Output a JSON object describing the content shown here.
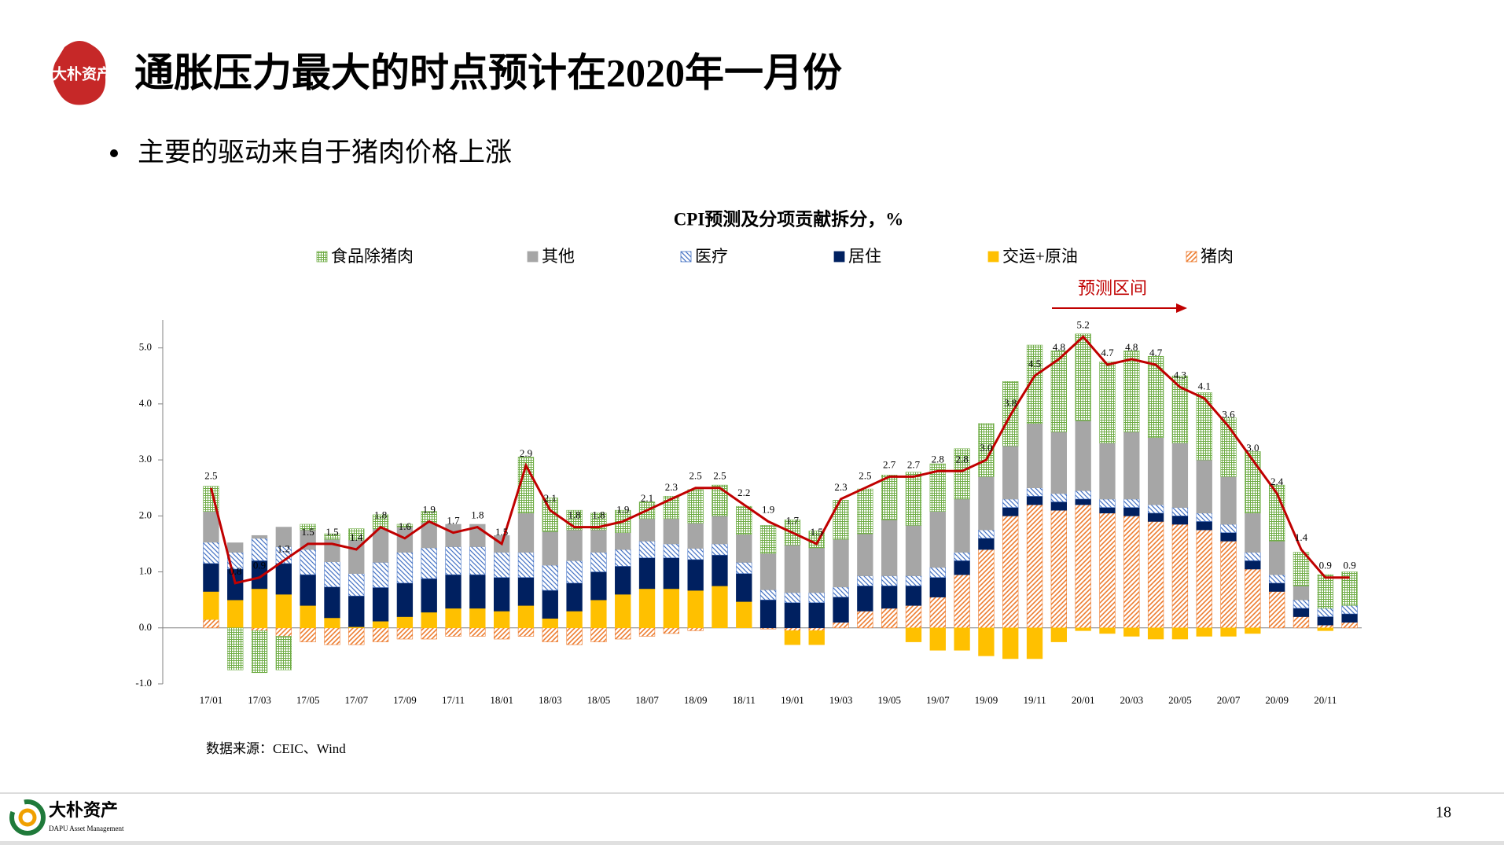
{
  "header": {
    "logo": "大朴资产",
    "title": "通胀压力最大的时点预计在2020年一月份",
    "bullet": "主要的驱动来自于猪肉价格上涨"
  },
  "chart_data": {
    "type": "stacked_bar_line",
    "title": "CPI预测及分项贡献拆分，%",
    "categories": [
      "17/01",
      null,
      "17/03",
      null,
      "17/05",
      null,
      "17/07",
      null,
      "17/09",
      null,
      "17/11",
      null,
      "18/01",
      null,
      "18/03",
      null,
      "18/05",
      null,
      "18/07",
      null,
      "18/09",
      null,
      "18/11",
      null,
      "19/01",
      null,
      "19/03",
      null,
      "19/05",
      null,
      "19/07",
      null,
      "19/09",
      null,
      "19/11",
      null,
      "20/01",
      null,
      "20/03",
      null,
      "20/05",
      null,
      "20/07",
      null,
      "20/09",
      null,
      "20/11",
      null
    ],
    "series": [
      {
        "name": "食品除猪肉",
        "color": "#70ad47",
        "hatch": "grid",
        "values": [
          0.45,
          -0.75,
          -0.75,
          -0.6,
          0.1,
          0.1,
          0.2,
          0.25,
          0.05,
          0.2,
          0,
          0,
          0,
          1.0,
          0.6,
          0.35,
          0.3,
          0.4,
          0.3,
          0.4,
          0.6,
          0.55,
          0.5,
          0.5,
          0.45,
          0.3,
          0.7,
          0.8,
          0.8,
          0.95,
          0.85,
          0.9,
          0.95,
          1.15,
          1.4,
          1.45,
          1.55,
          1.45,
          1.45,
          1.45,
          1.2,
          1.2,
          1.05,
          1.1,
          1.0,
          0.6,
          0.6,
          0.6
        ]
      },
      {
        "name": "其他",
        "color": "#a6a6a6",
        "hatch": "solid",
        "values": [
          0.55,
          0.17,
          0.05,
          0.35,
          0.35,
          0.4,
          0.6,
          0.6,
          0.45,
          0.45,
          0.4,
          0.4,
          0.3,
          0.7,
          0.6,
          0.55,
          0.4,
          0.3,
          0.4,
          0.45,
          0.45,
          0.5,
          0.5,
          0.65,
          0.85,
          0.8,
          0.85,
          0.75,
          1.0,
          0.9,
          1.0,
          0.95,
          0.95,
          0.95,
          1.15,
          1.1,
          1.25,
          1.0,
          1.2,
          1.2,
          1.15,
          0.95,
          0.85,
          0.7,
          0.6,
          0.25,
          0,
          0
        ]
      },
      {
        "name": "医疗",
        "color": "#4472c4",
        "hatch": "backdiagonal",
        "values": [
          0.38,
          0.3,
          0.4,
          0.3,
          0.45,
          0.45,
          0.4,
          0.45,
          0.55,
          0.55,
          0.5,
          0.5,
          0.45,
          0.45,
          0.45,
          0.4,
          0.35,
          0.3,
          0.3,
          0.25,
          0.2,
          0.2,
          0.2,
          0.18,
          0.18,
          0.18,
          0.18,
          0.18,
          0.18,
          0.18,
          0.18,
          0.15,
          0.15,
          0.15,
          0.15,
          0.15,
          0.15,
          0.15,
          0.15,
          0.15,
          0.15,
          0.15,
          0.15,
          0.15,
          0.15,
          0.15,
          0.15,
          0.15
        ]
      },
      {
        "name": "居住",
        "color": "#002060",
        "hatch": "solid",
        "values": [
          0.5,
          0.55,
          0.5,
          0.55,
          0.55,
          0.55,
          0.55,
          0.6,
          0.6,
          0.6,
          0.6,
          0.6,
          0.6,
          0.5,
          0.5,
          0.5,
          0.5,
          0.5,
          0.55,
          0.55,
          0.55,
          0.55,
          0.5,
          0.5,
          0.45,
          0.45,
          0.45,
          0.45,
          0.4,
          0.35,
          0.35,
          0.25,
          0.2,
          0.15,
          0.15,
          0.15,
          0.1,
          0.1,
          0.15,
          0.15,
          0.15,
          0.15,
          0.15,
          0.15,
          0.15,
          0.15,
          0.15,
          0.15
        ]
      },
      {
        "name": "交运+原油",
        "color": "#ffc000",
        "hatch": "solid",
        "values": [
          0.5,
          0.5,
          0.7,
          0.6,
          0.4,
          0.18,
          0.02,
          0.12,
          0.2,
          0.28,
          0.35,
          0.35,
          0.3,
          0.4,
          0.17,
          0.3,
          0.5,
          0.6,
          0.7,
          0.7,
          0.67,
          0.75,
          0.47,
          0,
          -0.25,
          -0.25,
          0,
          0,
          0,
          -0.25,
          -0.4,
          -0.4,
          -0.5,
          -0.55,
          -0.55,
          -0.25,
          -0.05,
          -0.1,
          -0.15,
          -0.2,
          -0.2,
          -0.15,
          -0.15,
          -0.1,
          0,
          0,
          -0.05,
          0
        ]
      },
      {
        "name": "猪肉",
        "color": "#ed7d31",
        "hatch": "diagonal",
        "values": [
          0.15,
          0,
          -0.05,
          -0.15,
          -0.25,
          -0.3,
          -0.3,
          -0.25,
          -0.2,
          -0.2,
          -0.15,
          -0.15,
          -0.2,
          -0.15,
          -0.25,
          -0.3,
          -0.25,
          -0.2,
          -0.15,
          -0.1,
          -0.05,
          0,
          0,
          -0.02,
          -0.05,
          -0.05,
          0.1,
          0.3,
          0.35,
          0.4,
          0.55,
          0.95,
          1.4,
          2.0,
          2.2,
          2.1,
          2.2,
          2.05,
          2.0,
          1.9,
          1.85,
          1.75,
          1.55,
          1.05,
          0.65,
          0.2,
          0.05,
          0.1
        ]
      }
    ],
    "line": {
      "color": "#c00000",
      "values": [
        2.5,
        0.8,
        0.9,
        1.2,
        1.5,
        1.5,
        1.4,
        1.8,
        1.6,
        1.9,
        1.7,
        1.8,
        1.5,
        2.9,
        2.1,
        1.8,
        1.8,
        1.9,
        2.1,
        2.3,
        2.5,
        2.5,
        2.2,
        1.9,
        1.7,
        1.5,
        2.3,
        2.5,
        2.7,
        2.7,
        2.8,
        2.8,
        3.0,
        3.8,
        4.5,
        4.8,
        5.2,
        4.7,
        4.8,
        4.7,
        4.3,
        4.1,
        3.6,
        3.0,
        2.4,
        1.4,
        0.9,
        0.9
      ],
      "value_labels": [
        "2.5",
        "0.8",
        "0.9",
        "1.2",
        "1.5",
        "1.5",
        "1.4",
        "1.8",
        "1.6",
        "1.9",
        "1.7",
        "1.8",
        "1.5",
        "2.9",
        "2.1",
        "1.8",
        "1.8",
        "1.9",
        "2.1",
        "2.3",
        "2.5",
        "2.5",
        "2.2",
        "1.9",
        "1.7",
        "1.5",
        "2.3",
        "2.5",
        "2.7",
        "2.7",
        "2.8",
        "2.8",
        "3.0",
        "3.8",
        "4.5",
        "4.8",
        "5.2",
        "4.7",
        "4.8",
        "4.7",
        "4.3",
        "4.1",
        "3.6",
        "3.0",
        "2.4",
        "1.4",
        "0.9",
        "0.9"
      ]
    },
    "annotation": "预测区间",
    "ylim": [
      -1,
      5.5
    ],
    "yticks": [
      {
        "value": -1,
        "label": "-1.0"
      },
      {
        "value": 0,
        "label": "0.0"
      },
      {
        "value": 1,
        "label": "1.0"
      },
      {
        "value": 2,
        "label": "2.0"
      },
      {
        "value": 3,
        "label": "3.0"
      },
      {
        "value": 4,
        "label": "4.0"
      },
      {
        "value": 5,
        "label": "5.0"
      }
    ],
    "grid": false,
    "legend": "top"
  },
  "source": "数据来源：CEIC、Wind",
  "footer": {
    "brand": "大朴资产",
    "brand_en": "DAPU Asset Management",
    "page": "18"
  }
}
